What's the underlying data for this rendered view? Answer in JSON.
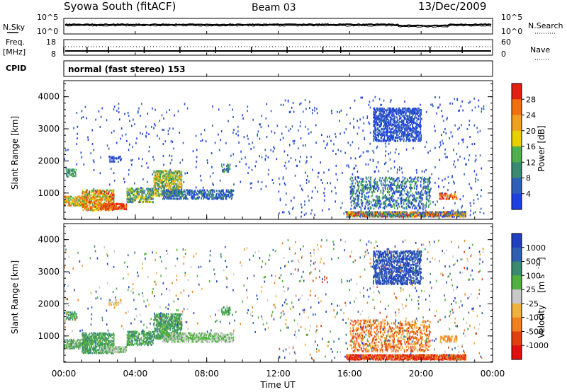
{
  "header": {
    "station": "Syowa South (fitACF)",
    "beam": "Beam 03",
    "date": "13/Dec/2009"
  },
  "noise_panel": {
    "left_label": "N.Sky",
    "right_label": "N.Search",
    "tick_top": "10^5",
    "tick_bottom": "10^0"
  },
  "freq_panel": {
    "left_label_1": "Freq.",
    "left_label_2": "[MHz]",
    "left_tick_top": "18",
    "left_tick_bottom": "8",
    "right_label": "Nave",
    "right_tick_top": "60",
    "right_tick_bottom": "0"
  },
  "cpid_panel": {
    "label": "CPID",
    "text": "normal (fast stereo) 153"
  },
  "chart_data": [
    {
      "type": "heatmap",
      "title": "",
      "ylabel": "Slant Range [km]",
      "xlabel": "",
      "ylim": [
        180,
        4500
      ],
      "y_ticks": [
        "1000",
        "2000",
        "3000",
        "4000"
      ],
      "colorbar": {
        "label": "Power [dB]",
        "ticks": [
          "4",
          "8",
          "12",
          "16",
          "20",
          "24",
          "28"
        ],
        "colors": [
          "#1f3fe0",
          "#2f5fb8",
          "#3a8a72",
          "#4eb04e",
          "#e8d000",
          "#f0a020",
          "#f07010",
          "#e02010"
        ]
      }
    },
    {
      "type": "heatmap",
      "title": "",
      "ylabel": "Slant Range [km]",
      "xlabel": "Time UT",
      "ylim": [
        180,
        4500
      ],
      "y_ticks": [
        "1000",
        "2000",
        "3000",
        "4000"
      ],
      "x_ticks": [
        "00:00",
        "04:00",
        "08:00",
        "12:00",
        "16:00",
        "20:00",
        "00:00"
      ],
      "colorbar": {
        "label_1": "Velocity",
        "label_2": "[m s",
        "label_sup": "-1",
        "label_3": "]",
        "ticks": [
          "1000",
          "500",
          "100",
          "25",
          "-25",
          "-100",
          "-500",
          "-1000"
        ],
        "colors": [
          "#2040c0",
          "#2f5fb0",
          "#3a8a70",
          "#50b040",
          "#c8c8c8",
          "#f0b040",
          "#f08020",
          "#e04010",
          "#e01010"
        ]
      }
    }
  ]
}
